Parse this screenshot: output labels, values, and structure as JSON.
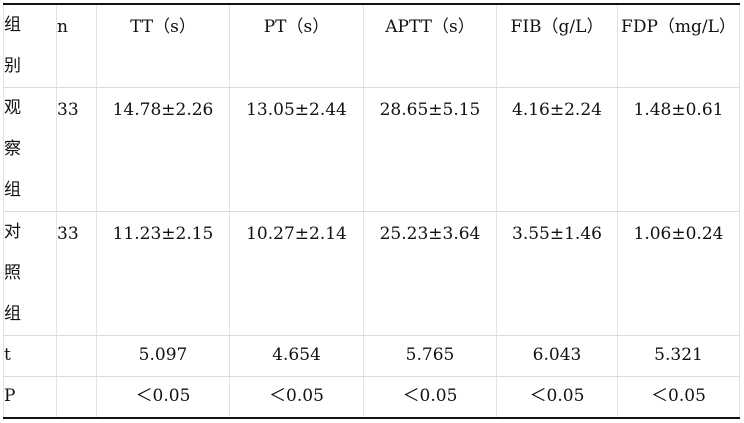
{
  "table": {
    "headers": {
      "group_chars": [
        "组",
        "别"
      ],
      "n": "n",
      "tt": "TT（s）",
      "pt": "PT（s）",
      "aptt": "APTT（s）",
      "fib": "FIB（g/L）",
      "fdp": "FDP（mg/L）"
    },
    "rows": [
      {
        "group_chars": [
          "观",
          "察",
          "组"
        ],
        "n": "33",
        "tt": "14.78±2.26",
        "pt": "13.05±2.44",
        "aptt": "28.65±5.15",
        "fib": "4.16±2.24",
        "fdp": "1.48±0.61"
      },
      {
        "group_chars": [
          "对",
          "照",
          "组"
        ],
        "n": "33",
        "tt": "11.23±2.15",
        "pt": "10.27±2.14",
        "aptt": "25.23±3.64",
        "fib": "3.55±1.46",
        "fdp": "1.06±0.24"
      }
    ],
    "t_row": {
      "label": "t",
      "tt": "5.097",
      "pt": "4.654",
      "aptt": "5.765",
      "fib": "6.043",
      "fdp": "5.321"
    },
    "p_row": {
      "label": "P",
      "tt": "＜0.05",
      "pt": "＜0.05",
      "aptt": "＜0.05",
      "fib": "＜0.05",
      "fdp": "＜0.05"
    }
  }
}
